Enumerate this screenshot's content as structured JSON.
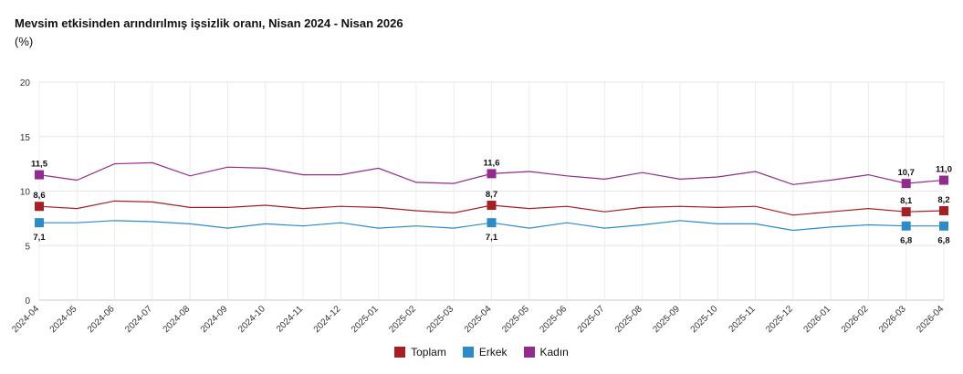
{
  "header": {
    "title": "Mevsim etkisinden arındırılmış işsizlik oranı, Nisan 2024 - Nisan 2026",
    "subtitle": "(%)"
  },
  "chart_data": {
    "type": "line",
    "title": "Mevsim etkisinden arındırılmış işsizlik oranı, Nisan 2024 - Nisan 2026",
    "ylabel": "(%)",
    "ylim": [
      0,
      20
    ],
    "yticks": [
      0,
      5,
      10,
      15,
      20
    ],
    "grid": true,
    "legend_position": "bottom",
    "categories": [
      "2024-04",
      "2024-05",
      "2024-06",
      "2024-07",
      "2024-08",
      "2024-09",
      "2024-10",
      "2024-11",
      "2024-12",
      "2025-01",
      "2025-02",
      "2025-03",
      "2025-04",
      "2025-05",
      "2025-06",
      "2025-07",
      "2025-08",
      "2025-09",
      "2025-10",
      "2025-11",
      "2025-12",
      "2026-01",
      "2026-02",
      "2026-03",
      "2026-04"
    ],
    "series": [
      {
        "name": "Toplam",
        "color": "#a51f24",
        "values": [
          8.6,
          8.4,
          9.1,
          9.0,
          8.5,
          8.5,
          8.7,
          8.4,
          8.6,
          8.5,
          8.2,
          8.0,
          8.7,
          8.4,
          8.6,
          8.1,
          8.5,
          8.6,
          8.5,
          8.6,
          7.8,
          8.1,
          8.4,
          8.1,
          8.2
        ],
        "labeled_points": [
          {
            "index": 0,
            "label": "8,6"
          },
          {
            "index": 12,
            "label": "8,7"
          },
          {
            "index": 23,
            "label": "8,1"
          },
          {
            "index": 24,
            "label": "8,2"
          }
        ]
      },
      {
        "name": "Erkek",
        "color": "#2e8bc9",
        "values": [
          7.1,
          7.1,
          7.3,
          7.2,
          7.0,
          6.6,
          7.0,
          6.8,
          7.1,
          6.6,
          6.8,
          6.6,
          7.1,
          6.6,
          7.1,
          6.6,
          6.9,
          7.3,
          7.0,
          7.0,
          6.4,
          6.7,
          6.9,
          6.8,
          6.8
        ],
        "labeled_points": [
          {
            "index": 0,
            "label": "7,1"
          },
          {
            "index": 12,
            "label": "7,1"
          },
          {
            "index": 23,
            "label": "6,8"
          },
          {
            "index": 24,
            "label": "6,8"
          }
        ]
      },
      {
        "name": "Kadın",
        "color": "#922b8f",
        "values": [
          11.5,
          11.0,
          12.5,
          12.6,
          11.4,
          12.2,
          12.1,
          11.5,
          11.5,
          12.1,
          10.8,
          10.7,
          11.6,
          11.8,
          11.4,
          11.1,
          11.7,
          11.1,
          11.3,
          11.8,
          10.6,
          11.0,
          11.5,
          10.7,
          11.0
        ],
        "labeled_points": [
          {
            "index": 0,
            "label": "11,5"
          },
          {
            "index": 12,
            "label": "11,6"
          },
          {
            "index": 23,
            "label": "10,7"
          },
          {
            "index": 24,
            "label": "11,0"
          }
        ]
      }
    ]
  }
}
